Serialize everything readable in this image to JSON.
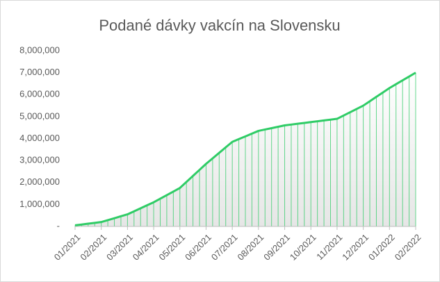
{
  "chart_data": {
    "type": "line",
    "title": "Podané dávky vakcín na Slovensku",
    "categories": [
      "01/2021",
      null,
      null,
      null,
      "02/2021",
      null,
      null,
      null,
      "03/2021",
      null,
      null,
      null,
      "04/2021",
      null,
      null,
      null,
      "05/2021",
      null,
      null,
      null,
      "06/2021",
      null,
      null,
      null,
      "07/2021",
      null,
      null,
      null,
      "08/2021",
      null,
      null,
      null,
      "09/2021",
      null,
      null,
      null,
      "10/2021",
      null,
      null,
      null,
      "11/2021",
      null,
      null,
      null,
      "12/2021",
      null,
      null,
      null,
      "01/2022",
      null,
      null,
      null,
      "02/2022"
    ],
    "series": [
      {
        "name": "Podané dávky",
        "color": "#2fcc66",
        "values": [
          50000,
          88000,
          125000,
          163000,
          200000,
          288000,
          375000,
          463000,
          550000,
          688000,
          825000,
          963000,
          1100000,
          1263000,
          1425000,
          1588000,
          1750000,
          2025000,
          2300000,
          2575000,
          2850000,
          3100000,
          3350000,
          3600000,
          3850000,
          3975000,
          4100000,
          4225000,
          4350000,
          4413000,
          4475000,
          4538000,
          4600000,
          4638000,
          4675000,
          4713000,
          4750000,
          4788000,
          4825000,
          4863000,
          4900000,
          5050000,
          5200000,
          5350000,
          5500000,
          5700000,
          5900000,
          6100000,
          6300000,
          6475000,
          6650000,
          6825000,
          7000000
        ]
      }
    ],
    "ylim": [
      0,
      8000000
    ],
    "yticks": [
      {
        "value": 0,
        "label": "-"
      },
      {
        "value": 1000000,
        "label": "1,000,000"
      },
      {
        "value": 2000000,
        "label": "2,000,000"
      },
      {
        "value": 3000000,
        "label": "3,000,000"
      },
      {
        "value": 4000000,
        "label": "4,000,000"
      },
      {
        "value": 5000000,
        "label": "5,000,000"
      },
      {
        "value": 6000000,
        "label": "6,000,000"
      },
      {
        "value": 7000000,
        "label": "7,000,000"
      },
      {
        "value": 8000000,
        "label": "8,000,000"
      }
    ],
    "drop_lines": true
  }
}
